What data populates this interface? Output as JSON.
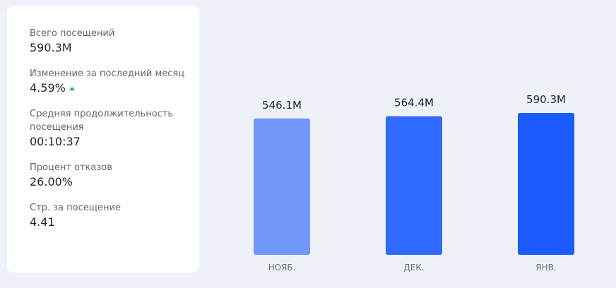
{
  "metrics": [
    {
      "label": "Всего посещений",
      "value": "590.3M",
      "trend": ""
    },
    {
      "label": "Изменение за последний месяц",
      "value": "4.59%",
      "trend": "up"
    },
    {
      "label": "Средняя продолжительность посещения",
      "value": "00:10:37",
      "trend": ""
    },
    {
      "label": "Процент отказов",
      "value": "26.00%",
      "trend": ""
    },
    {
      "label": "Стр. за посещение",
      "value": "4.41",
      "trend": ""
    }
  ],
  "colors": {
    "bars": [
      "#7097fc",
      "#2f69fd",
      "#1a5cff"
    ],
    "trend_up": "#19b36b"
  },
  "chart_data": {
    "type": "bar",
    "categories": [
      "НОЯБ.",
      "ДЕК.",
      "ЯНВ."
    ],
    "values": [
      546.1,
      564.4,
      590.3
    ],
    "value_labels": [
      "546.1M",
      "564.4M",
      "590.3M"
    ],
    "ylim": [
      0,
      600
    ],
    "grid": false,
    "xlabel": "",
    "ylabel": ""
  }
}
